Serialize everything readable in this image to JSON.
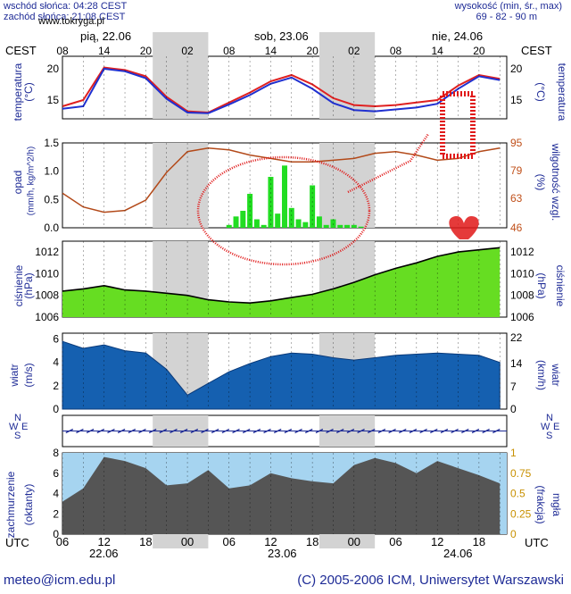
{
  "header": {
    "sunrise": "wschód słońca: 04:28 CEST",
    "sunset": "zachód słońca: 21:08 CEST",
    "site": "www.tokryga.pl",
    "altitude": "wysokość (min, śr., max)",
    "altitude_values": "69 - 82 - 90 m",
    "tz_left": "CEST",
    "tz_right": "CEST"
  },
  "days_top": [
    "pią, 22.06",
    "sob, 23.06",
    "nie, 24.06"
  ],
  "hours_cest": [
    "08",
    "14",
    "20",
    "02",
    "08",
    "14",
    "20",
    "02",
    "08",
    "14",
    "20"
  ],
  "hours_utc": [
    "06",
    "12",
    "18",
    "00",
    "06",
    "12",
    "18",
    "00",
    "06",
    "12",
    "18"
  ],
  "days_bottom": [
    "22.06",
    "23.06",
    "24.06"
  ],
  "utc_label": "UTC",
  "panels": {
    "temperature": {
      "left_label": "temperatura",
      "left_unit": "(°C)",
      "right_label": "temperatura",
      "right_unit": "(°C)",
      "ticks": [
        "20",
        "15"
      ]
    },
    "precip": {
      "left_label": "opad",
      "left_unit": "(mm/h, kg/m^2/h)",
      "right_label": "wilgotność wzgl.",
      "right_unit": "(%)",
      "ticks_left": [
        "1.5",
        "1.0",
        "0.5",
        "0.0"
      ],
      "ticks_right": [
        "95",
        "79",
        "63",
        "46"
      ]
    },
    "pressure": {
      "left_label": "ciśnienie",
      "left_unit": "(hPa)",
      "right_label": "ciśnienie",
      "right_unit": "(hPa)",
      "ticks": [
        "1012",
        "1010",
        "1008",
        "1006"
      ]
    },
    "wind": {
      "left_label": "wiatr",
      "left_unit": "(m/s)",
      "right_label": "wiatr",
      "right_unit": "(km/h)",
      "ticks_left": [
        "6",
        "4",
        "2",
        "0"
      ],
      "ticks_right": [
        "22",
        "14",
        "7",
        "0"
      ]
    },
    "cloud": {
      "left_label": "zachmurzenie",
      "left_unit": "(oktanty)",
      "right_label": "mgła",
      "right_unit": "(frakcja)",
      "ticks_left": [
        "8",
        "6",
        "4",
        "2",
        "0"
      ],
      "ticks_right": [
        "1",
        "0.75",
        "0.5",
        "0.25",
        "0"
      ]
    }
  },
  "compass": {
    "n": "N",
    "w": "W",
    "e": "E",
    "s": "S"
  },
  "footer": {
    "email": "meteo@icm.edu.pl",
    "copyright": "(C) 2005-2006 ICM, Uniwersytet Warszawski"
  },
  "chart_data": [
    {
      "type": "line",
      "title": "temperatura",
      "ylabel": "temperatura (°C)",
      "ylim": [
        12,
        22
      ],
      "x_hours_utc": [
        6,
        9,
        12,
        15,
        18,
        21,
        24,
        27,
        30,
        33,
        36,
        39,
        42,
        45,
        48,
        51,
        54,
        57,
        60,
        63,
        66,
        69
      ],
      "series": [
        {
          "values": [
            14,
            15,
            20.2,
            19.8,
            18.8,
            15.5,
            13.2,
            13.0,
            14.6,
            16.2,
            18.0,
            19.0,
            17.5,
            15.3,
            14.2,
            14.0,
            14.2,
            14.6,
            15.0,
            17.3,
            19.0,
            18.4
          ]
        },
        {
          "values": [
            13.6,
            14.0,
            20.0,
            19.6,
            18.5,
            15.2,
            13.0,
            12.9,
            14.3,
            15.8,
            17.6,
            18.6,
            16.8,
            14.5,
            13.4,
            13.2,
            13.5,
            13.8,
            14.4,
            16.8,
            18.8,
            18.2
          ]
        }
      ]
    },
    {
      "type": "bar",
      "title": "opad",
      "ylabel": "opad (mm/h, kg/m^2/h)",
      "ylim": [
        0,
        1.5
      ],
      "x_hours_utc": [
        30,
        31,
        32,
        33,
        34,
        35,
        36,
        37,
        38,
        39,
        40,
        41,
        42,
        43,
        44,
        45,
        46,
        47,
        48,
        49
      ],
      "values": [
        0.05,
        0.2,
        0.3,
        0.6,
        0.15,
        0.05,
        0.9,
        0.25,
        1.1,
        0.35,
        0.15,
        0.1,
        0.75,
        0.2,
        0.05,
        0.15,
        0.05,
        0.05,
        0.05,
        0.02
      ],
      "humidity": {
        "ylim": [
          46,
          95
        ],
        "values": [
          66,
          58,
          55,
          56,
          62,
          78,
          90,
          92,
          91,
          88,
          86,
          84,
          84,
          85,
          86,
          89,
          90,
          88,
          85,
          86,
          90,
          92
        ]
      }
    },
    {
      "type": "area",
      "title": "ciśnienie",
      "ylabel": "ciśnienie (hPa)",
      "ylim": [
        1006,
        1013
      ],
      "x_hours_utc": [
        6,
        9,
        12,
        15,
        18,
        21,
        24,
        27,
        30,
        33,
        36,
        39,
        42,
        45,
        48,
        51,
        54,
        57,
        60,
        63,
        66,
        69
      ],
      "values": [
        1008.4,
        1008.6,
        1008.9,
        1008.5,
        1008.4,
        1008.2,
        1008.0,
        1007.6,
        1007.4,
        1007.3,
        1007.5,
        1007.8,
        1008.1,
        1008.6,
        1009.2,
        1009.9,
        1010.5,
        1011.0,
        1011.6,
        1012.0,
        1012.2,
        1012.4
      ]
    },
    {
      "type": "area",
      "title": "wiatr",
      "ylabel": "wiatr (m/s)",
      "ylim": [
        0,
        6.5
      ],
      "x_hours_utc": [
        6,
        9,
        12,
        15,
        18,
        21,
        24,
        27,
        30,
        33,
        36,
        39,
        42,
        45,
        48,
        51,
        54,
        57,
        60,
        63,
        66,
        69
      ],
      "values": [
        5.8,
        5.2,
        5.5,
        5.0,
        4.8,
        3.4,
        1.2,
        2.2,
        3.2,
        3.9,
        4.5,
        4.8,
        4.7,
        4.4,
        4.2,
        4.4,
        4.6,
        4.7,
        4.8,
        4.7,
        4.6,
        4.0
      ]
    },
    {
      "type": "area",
      "title": "zachmurzenie",
      "ylabel": "zachmurzenie (oktanty)",
      "ylim": [
        0,
        8
      ],
      "x_hours_utc": [
        6,
        9,
        12,
        15,
        18,
        21,
        24,
        27,
        30,
        33,
        36,
        39,
        42,
        45,
        48,
        51,
        54,
        57,
        60,
        63,
        66,
        69
      ],
      "values": [
        3.2,
        4.5,
        7.6,
        7.2,
        6.5,
        4.8,
        5.0,
        6.3,
        4.5,
        4.8,
        6.0,
        5.5,
        5.2,
        5.0,
        6.8,
        7.5,
        7.0,
        6.0,
        7.2,
        6.5,
        5.8,
        5.0
      ]
    }
  ]
}
